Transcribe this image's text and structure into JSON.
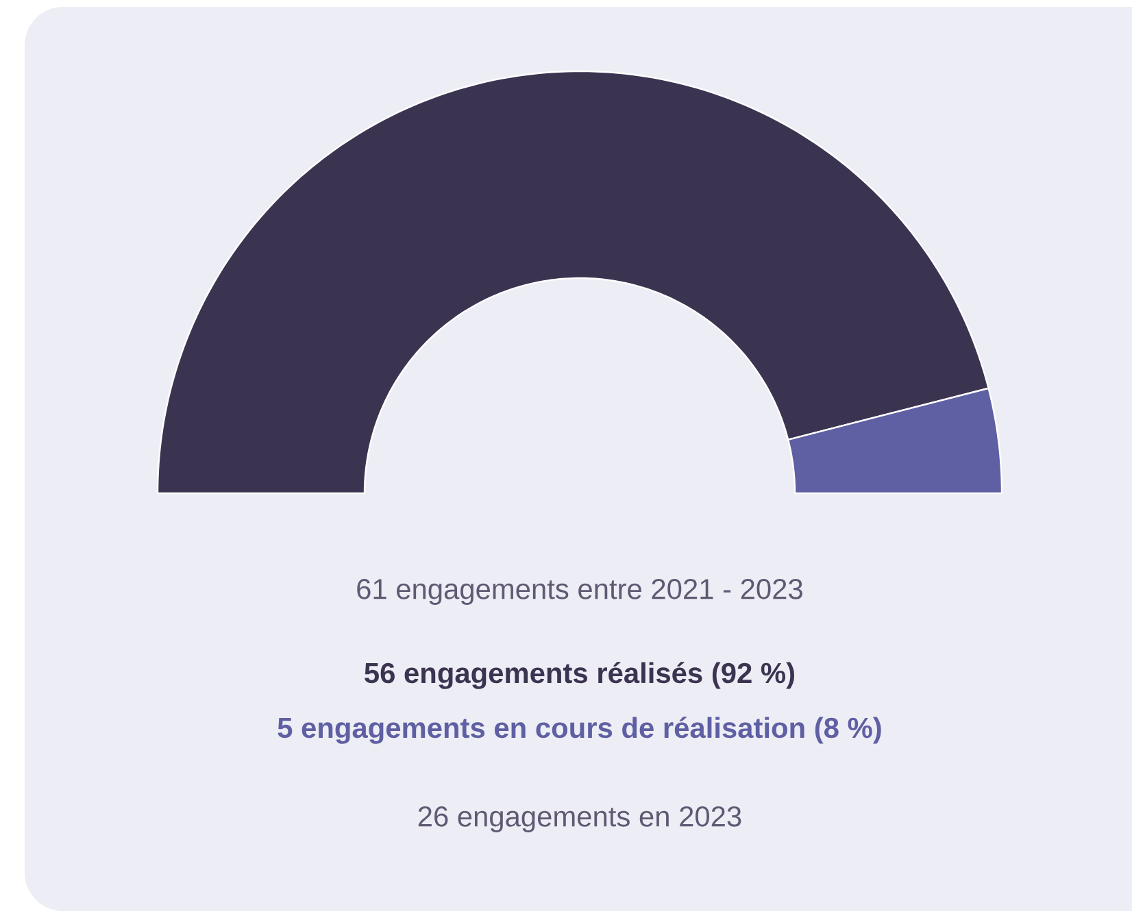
{
  "chart_data": {
    "type": "donut",
    "title": "61 engagements entre 2021 - 2023",
    "categories": [
      null,
      null
    ],
    "values": [
      92,
      8
    ],
    "colors": [
      "#3b3451",
      "#5f5fa3"
    ],
    "annotations": [
      "56 engagements réalisés (92 %)",
      "5 engagements en cours de réalisation (8 %)",
      "26 engagements en 2023"
    ]
  }
}
